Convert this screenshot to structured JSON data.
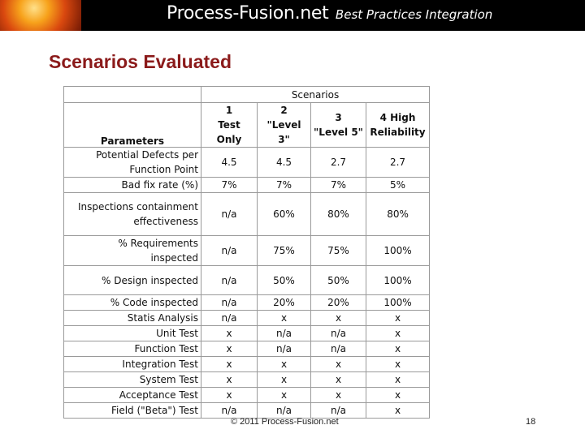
{
  "header": {
    "brand_name": "Process-Fusion.net",
    "tagline": "Best Practices Integration"
  },
  "slide_title": "Scenarios Evaluated",
  "table": {
    "group_header": "Scenarios",
    "param_header": "Parameters",
    "columns": [
      "1\nTest Only",
      "2\n\"Level 3\"",
      "3\n\"Level 5\"",
      "4 High\nReliability"
    ],
    "rows": [
      {
        "label": "Potential Defects per\nFunction Point",
        "values": [
          "4.5",
          "4.5",
          "2.7",
          "2.7"
        ]
      },
      {
        "label": "Bad fix rate (%)",
        "values": [
          "7%",
          "7%",
          "7%",
          "5%"
        ]
      },
      {
        "label": "Inspections containment\neffectiveness",
        "values": [
          "n/a",
          "60%",
          "80%",
          "80%"
        ]
      },
      {
        "label": "% Requirements\ninspected",
        "values": [
          "n/a",
          "75%",
          "75%",
          "100%"
        ]
      },
      {
        "label": "% Design inspected",
        "values": [
          "n/a",
          "50%",
          "50%",
          "100%"
        ]
      },
      {
        "label": "% Code inspected",
        "values": [
          "n/a",
          "20%",
          "20%",
          "100%"
        ]
      },
      {
        "label": "Statis Analysis",
        "values": [
          "n/a",
          "x",
          "x",
          "x"
        ]
      },
      {
        "label": "Unit Test",
        "values": [
          "x",
          "n/a",
          "n/a",
          "x"
        ]
      },
      {
        "label": "Function Test",
        "values": [
          "x",
          "n/a",
          "n/a",
          "x"
        ]
      },
      {
        "label": "Integration Test",
        "values": [
          "x",
          "x",
          "x",
          "x"
        ]
      },
      {
        "label": "System Test",
        "values": [
          "x",
          "x",
          "x",
          "x"
        ]
      },
      {
        "label": "Acceptance Test",
        "values": [
          "x",
          "x",
          "x",
          "x"
        ]
      },
      {
        "label": "Field (\"Beta\") Test",
        "values": [
          "n/a",
          "n/a",
          "n/a",
          "x"
        ]
      }
    ]
  },
  "footer": {
    "copyright": "© 2011 Process-Fusion.net",
    "page_number": "18"
  }
}
